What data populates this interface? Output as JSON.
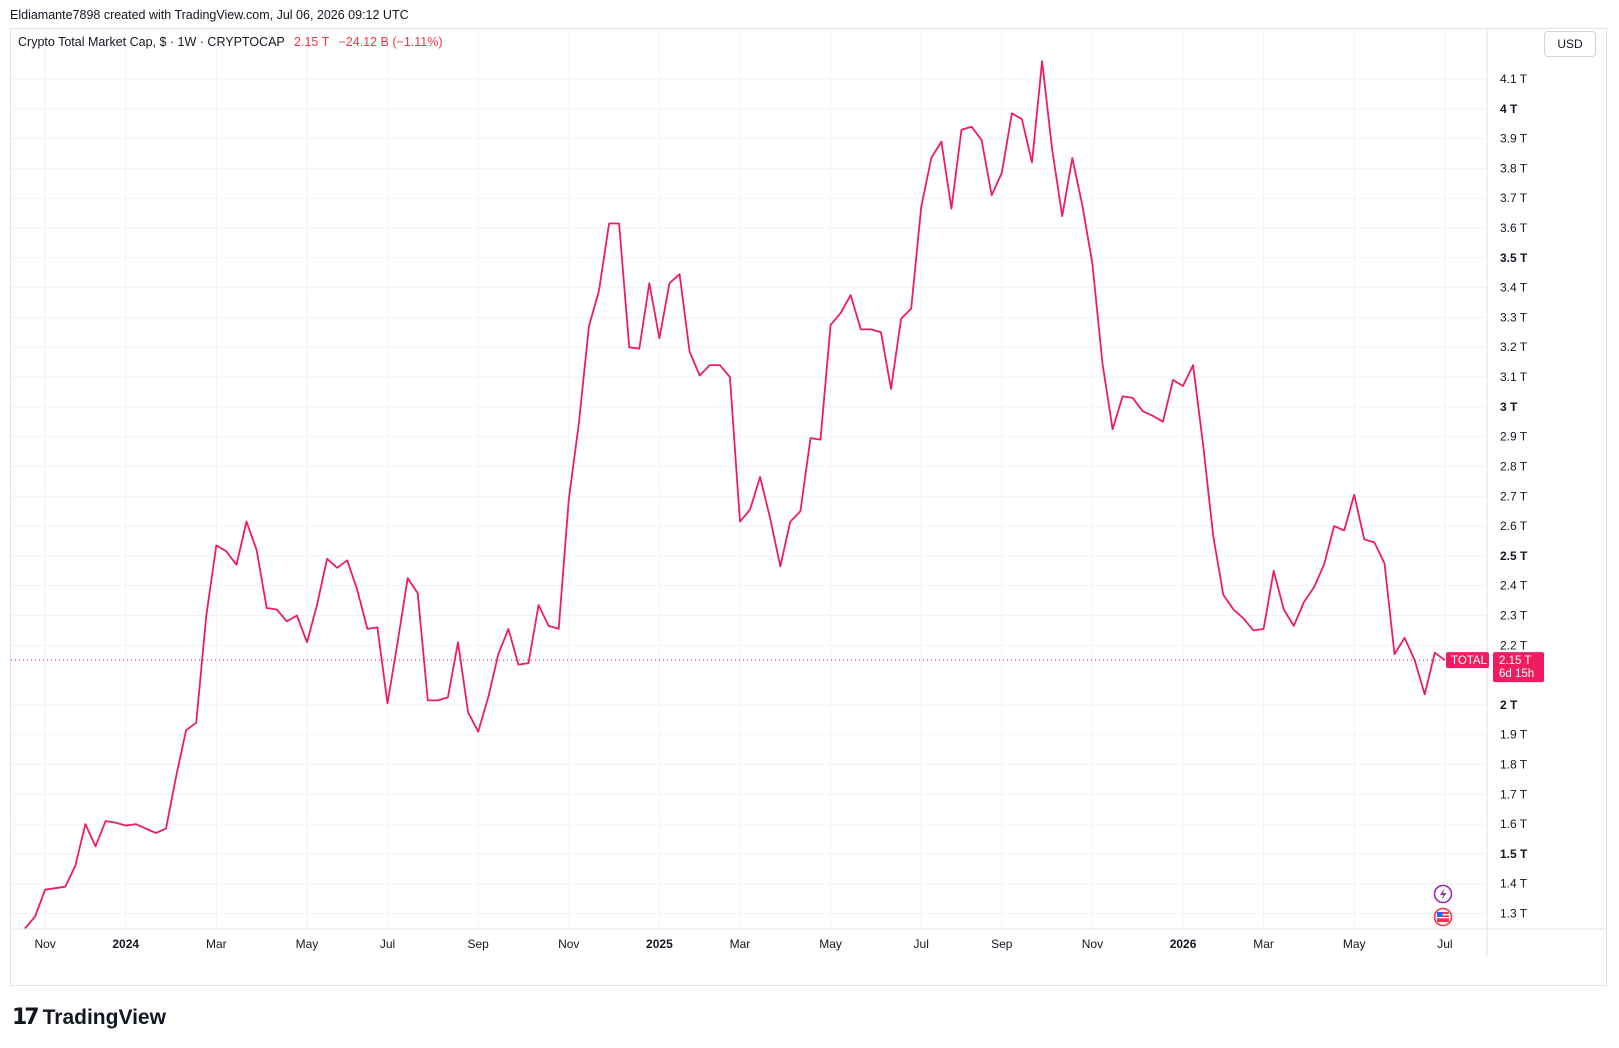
{
  "attribution": "Eldiamante7898 created with TradingView.com, Jul 06, 2026 09:12 UTC",
  "header": {
    "symbol": "Crypto Total Market Cap, $ · 1W · CRYPTOCAP",
    "last": "2.15 T",
    "change": "−24.12 B (−1.11%)"
  },
  "currency_button": "USD",
  "price_tag": {
    "ticker": "TOTAL",
    "value": "2.15 T",
    "countdown": "6d 15h"
  },
  "branding": {
    "logo_mark": "17",
    "logo_text": "TradingView"
  },
  "icons": [
    "lightning-icon",
    "us-flag-icon"
  ],
  "colors": {
    "line": "#ee1d5f",
    "grid": "#f0f3fa",
    "axis_text": "#131722",
    "tag_bg": "#ee1d5f"
  },
  "chart_data": {
    "type": "line",
    "title": "Crypto Total Market Cap, $ · 1W · CRYPTOCAP",
    "interval": "1W",
    "currency": "USD",
    "last_value": 2.15,
    "grid": true,
    "ylim": [
      1.22,
      4.21
    ],
    "y_ticks": [
      {
        "value": 4.1,
        "label": "4.1 T",
        "bold": false
      },
      {
        "value": 4.0,
        "label": "4 T",
        "bold": true
      },
      {
        "value": 3.9,
        "label": "3.9 T",
        "bold": false
      },
      {
        "value": 3.8,
        "label": "3.8 T",
        "bold": false
      },
      {
        "value": 3.7,
        "label": "3.7 T",
        "bold": false
      },
      {
        "value": 3.6,
        "label": "3.6 T",
        "bold": false
      },
      {
        "value": 3.5,
        "label": "3.5 T",
        "bold": true
      },
      {
        "value": 3.4,
        "label": "3.4 T",
        "bold": false
      },
      {
        "value": 3.3,
        "label": "3.3 T",
        "bold": false
      },
      {
        "value": 3.2,
        "label": "3.2 T",
        "bold": false
      },
      {
        "value": 3.1,
        "label": "3.1 T",
        "bold": false
      },
      {
        "value": 3.0,
        "label": "3 T",
        "bold": true
      },
      {
        "value": 2.9,
        "label": "2.9 T",
        "bold": false
      },
      {
        "value": 2.8,
        "label": "2.8 T",
        "bold": false
      },
      {
        "value": 2.7,
        "label": "2.7 T",
        "bold": false
      },
      {
        "value": 2.6,
        "label": "2.6 T",
        "bold": false
      },
      {
        "value": 2.5,
        "label": "2.5 T",
        "bold": true
      },
      {
        "value": 2.4,
        "label": "2.4 T",
        "bold": false
      },
      {
        "value": 2.3,
        "label": "2.3 T",
        "bold": false
      },
      {
        "value": 2.2,
        "label": "2.2 T",
        "bold": false
      },
      {
        "value": 2.0,
        "label": "2 T",
        "bold": true
      },
      {
        "value": 1.9,
        "label": "1.9 T",
        "bold": false
      },
      {
        "value": 1.8,
        "label": "1.8 T",
        "bold": false
      },
      {
        "value": 1.7,
        "label": "1.7 T",
        "bold": false
      },
      {
        "value": 1.6,
        "label": "1.6 T",
        "bold": false
      },
      {
        "value": 1.5,
        "label": "1.5 T",
        "bold": true
      },
      {
        "value": 1.4,
        "label": "1.4 T",
        "bold": false
      },
      {
        "value": 1.3,
        "label": "1.3 T",
        "bold": false
      }
    ],
    "x_ticks": [
      {
        "week": 2,
        "label": "Nov",
        "bold": false
      },
      {
        "week": 10,
        "label": "2024",
        "bold": true
      },
      {
        "week": 19,
        "label": "Mar",
        "bold": false
      },
      {
        "week": 28,
        "label": "May",
        "bold": false
      },
      {
        "week": 36,
        "label": "Jul",
        "bold": false
      },
      {
        "week": 45,
        "label": "Sep",
        "bold": false
      },
      {
        "week": 54,
        "label": "Nov",
        "bold": false
      },
      {
        "week": 63,
        "label": "2025",
        "bold": true
      },
      {
        "week": 71,
        "label": "Mar",
        "bold": false
      },
      {
        "week": 80,
        "label": "May",
        "bold": false
      },
      {
        "week": 89,
        "label": "Jul",
        "bold": false
      },
      {
        "week": 97,
        "label": "Sep",
        "bold": false
      },
      {
        "week": 106,
        "label": "Nov",
        "bold": false
      },
      {
        "week": 115,
        "label": "2026",
        "bold": true
      },
      {
        "week": 123,
        "label": "Mar",
        "bold": false
      },
      {
        "week": 132,
        "label": "May",
        "bold": false
      },
      {
        "week": 141,
        "label": "Jul",
        "bold": false
      }
    ],
    "series": [
      {
        "values": [
          1.25,
          1.29,
          1.38,
          1.385,
          1.39,
          1.46,
          1.6,
          1.525,
          1.61,
          1.605,
          1.595,
          1.6,
          1.585,
          1.57,
          1.585,
          1.76,
          1.915,
          1.94,
          2.3,
          2.535,
          2.515,
          2.47,
          2.615,
          2.52,
          2.325,
          2.32,
          2.28,
          2.3,
          2.21,
          2.335,
          2.49,
          2.46,
          2.485,
          2.385,
          2.255,
          2.26,
          2.005,
          2.21,
          2.425,
          2.375,
          2.015,
          2.015,
          2.025,
          2.21,
          1.975,
          1.91,
          2.025,
          2.17,
          2.255,
          2.135,
          2.14,
          2.335,
          2.265,
          2.255,
          2.69,
          2.945,
          3.27,
          3.39,
          3.615,
          3.615,
          3.2,
          3.195,
          3.415,
          3.23,
          3.415,
          3.445,
          3.185,
          3.105,
          3.14,
          3.14,
          3.1,
          2.615,
          2.655,
          2.765,
          2.625,
          2.465,
          2.615,
          2.65,
          2.895,
          2.89,
          3.275,
          3.315,
          3.375,
          3.26,
          3.26,
          3.25,
          3.06,
          3.295,
          3.33,
          3.67,
          3.835,
          3.89,
          3.665,
          3.93,
          3.94,
          3.895,
          3.71,
          3.785,
          3.985,
          3.965,
          3.82,
          4.16,
          3.865,
          3.64,
          3.835,
          3.675,
          3.48,
          3.145,
          2.925,
          3.035,
          3.03,
          2.985,
          2.97,
          2.95,
          3.09,
          3.07,
          3.14,
          2.87,
          2.565,
          2.37,
          2.32,
          2.29,
          2.25,
          2.255,
          2.45,
          2.32,
          2.265,
          2.345,
          2.395,
          2.47,
          2.6,
          2.585,
          2.705,
          2.555,
          2.545,
          2.475,
          2.17,
          2.225,
          2.15,
          2.035,
          2.175,
          2.15
        ]
      }
    ]
  }
}
